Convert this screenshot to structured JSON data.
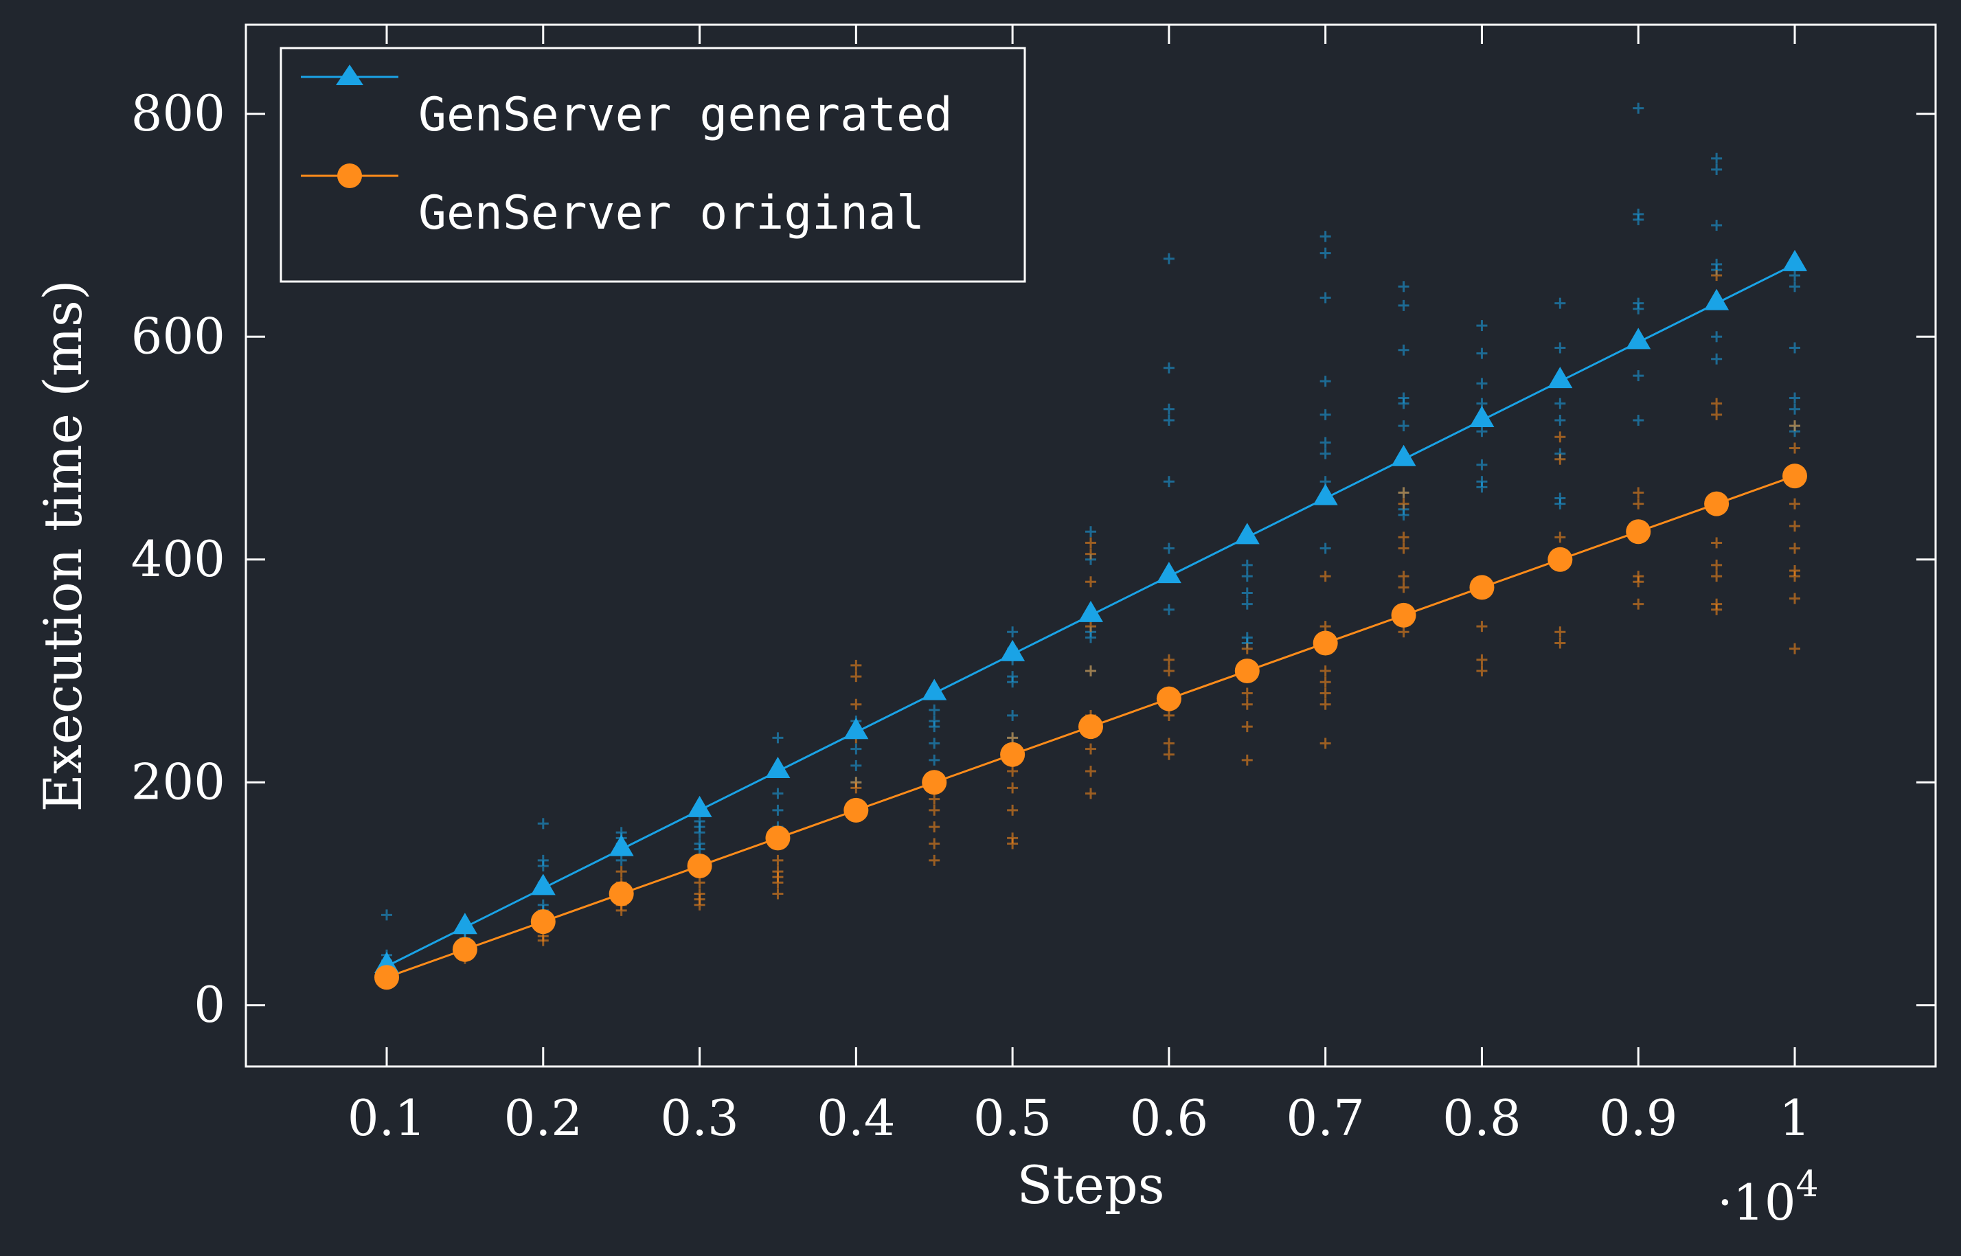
{
  "chart_data": {
    "type": "line",
    "xlabel": "Steps",
    "ylabel": "Execution time (ms)",
    "x_multiplier": "·10",
    "x_multiplier_exp": "4",
    "xlim": [
      0.01,
      1.09
    ],
    "ylim": [
      -55,
      880
    ],
    "x_ticks": [
      0.1,
      0.2,
      0.3,
      0.4,
      0.5,
      0.6,
      0.7,
      0.8,
      0.9,
      1
    ],
    "x_tick_labels": [
      "0.1",
      "0.2",
      "0.3",
      "0.4",
      "0.5",
      "0.6",
      "0.7",
      "0.8",
      "0.9",
      "1"
    ],
    "y_ticks": [
      0,
      200,
      400,
      600,
      800
    ],
    "y_tick_labels": [
      "0",
      "200",
      "400",
      "600",
      "800"
    ],
    "grid": false,
    "legend_position": "top-left",
    "x": [
      0.1,
      0.15,
      0.2,
      0.25,
      0.3,
      0.35,
      0.4,
      0.45,
      0.5,
      0.55,
      0.6,
      0.65,
      0.7,
      0.75,
      0.8,
      0.85,
      0.9,
      0.95,
      1.0
    ],
    "series": [
      {
        "name": "GenServer generated",
        "color": "#1aa3e6",
        "marker": "triangle",
        "values": [
          35,
          70,
          105,
          140,
          175,
          210,
          245,
          280,
          315,
          350,
          385,
          420,
          455,
          490,
          525,
          560,
          595,
          630,
          665
        ],
        "samples": [
          [
            81,
            45,
            40,
            36,
            33,
            30
          ],
          [
            72,
            65,
            60,
            55
          ],
          [
            163,
            130,
            125,
            110,
            90,
            85,
            80
          ],
          [
            155,
            150,
            145,
            140,
            130
          ],
          [
            165,
            160,
            155,
            145,
            140
          ],
          [
            240,
            190,
            175,
            160,
            150
          ],
          [
            255,
            245,
            230,
            215,
            200
          ],
          [
            265,
            255,
            250,
            235,
            220
          ],
          [
            335,
            320,
            310,
            295,
            290,
            260,
            240
          ],
          [
            425,
            400,
            350,
            335,
            330,
            300
          ],
          [
            670,
            572,
            535,
            525,
            470,
            410,
            355
          ],
          [
            395,
            385,
            370,
            360,
            330,
            325
          ],
          [
            690,
            675,
            635,
            560,
            530,
            505,
            495,
            470,
            410
          ],
          [
            645,
            628,
            588,
            545,
            540,
            520,
            460,
            445,
            440
          ],
          [
            610,
            585,
            558,
            540,
            515,
            485,
            470,
            465
          ],
          [
            630,
            590,
            540,
            525,
            495,
            455,
            450
          ],
          [
            805,
            710,
            705,
            630,
            625,
            565,
            525
          ],
          [
            760,
            750,
            700,
            665,
            660,
            600,
            580
          ],
          [
            655,
            645,
            590,
            545,
            535,
            520,
            515
          ]
        ]
      },
      {
        "name": "GenServer original",
        "color": "#ff8c1a",
        "marker": "circle",
        "values": [
          25,
          50,
          75,
          100,
          125,
          150,
          175,
          200,
          225,
          250,
          275,
          300,
          325,
          350,
          375,
          400,
          425,
          450,
          475
        ],
        "samples": [
          [
            30,
            26,
            22,
            20
          ],
          [
            55,
            50,
            45,
            42
          ],
          [
            80,
            75,
            70,
            62,
            58
          ],
          [
            120,
            110,
            100,
            90,
            85
          ],
          [
            130,
            120,
            110,
            100,
            95,
            90
          ],
          [
            130,
            120,
            115,
            110,
            100
          ],
          [
            305,
            295,
            270,
            240,
            200,
            195
          ],
          [
            185,
            175,
            160,
            145,
            130
          ],
          [
            240,
            225,
            210,
            195,
            175,
            150,
            145
          ],
          [
            415,
            405,
            380,
            340,
            300,
            260,
            230,
            210,
            190
          ],
          [
            310,
            300,
            280,
            260,
            235,
            225
          ],
          [
            320,
            300,
            280,
            270,
            250,
            220
          ],
          [
            385,
            340,
            300,
            290,
            280,
            270,
            235
          ],
          [
            460,
            450,
            420,
            410,
            385,
            375,
            335
          ],
          [
            340,
            310,
            300,
            380
          ],
          [
            510,
            490,
            420,
            405,
            335,
            325
          ],
          [
            460,
            450,
            420,
            385,
            380,
            360
          ],
          [
            655,
            540,
            530,
            415,
            395,
            385,
            360,
            355
          ],
          [
            520,
            500,
            450,
            430,
            410,
            390,
            385,
            365,
            320
          ]
        ]
      }
    ]
  }
}
